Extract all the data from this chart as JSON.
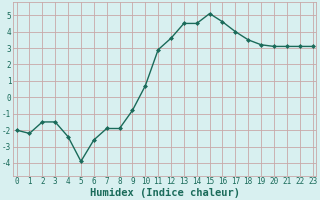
{
  "x": [
    0,
    1,
    2,
    3,
    4,
    5,
    6,
    7,
    8,
    9,
    10,
    11,
    12,
    13,
    14,
    15,
    16,
    17,
    18,
    19,
    20,
    21,
    22,
    23
  ],
  "y": [
    -2.0,
    -2.2,
    -1.5,
    -1.5,
    -2.4,
    -3.9,
    -2.6,
    -1.9,
    -1.9,
    -0.8,
    0.7,
    2.9,
    3.6,
    4.5,
    4.5,
    5.1,
    4.6,
    4.0,
    3.5,
    3.2,
    3.1,
    3.1,
    3.1,
    3.1
  ],
  "line_color": "#1a6b5a",
  "marker": "D",
  "marker_size": 2.0,
  "bg_color": "#d8f0f0",
  "grid_color": "#c8a8a8",
  "xlabel": "Humidex (Indice chaleur)",
  "xlabel_color": "#1a6b5a",
  "tick_color": "#1a6b5a",
  "ylim": [
    -4.8,
    5.8
  ],
  "xlim": [
    -0.3,
    23.3
  ],
  "yticks": [
    -4,
    -3,
    -2,
    -1,
    0,
    1,
    2,
    3,
    4,
    5
  ],
  "xticks": [
    0,
    1,
    2,
    3,
    4,
    5,
    6,
    7,
    8,
    9,
    10,
    11,
    12,
    13,
    14,
    15,
    16,
    17,
    18,
    19,
    20,
    21,
    22,
    23
  ],
  "figsize": [
    3.2,
    2.0
  ],
  "dpi": 100,
  "tick_fontsize": 5.5,
  "xlabel_fontsize": 7.5,
  "linewidth": 1.0
}
